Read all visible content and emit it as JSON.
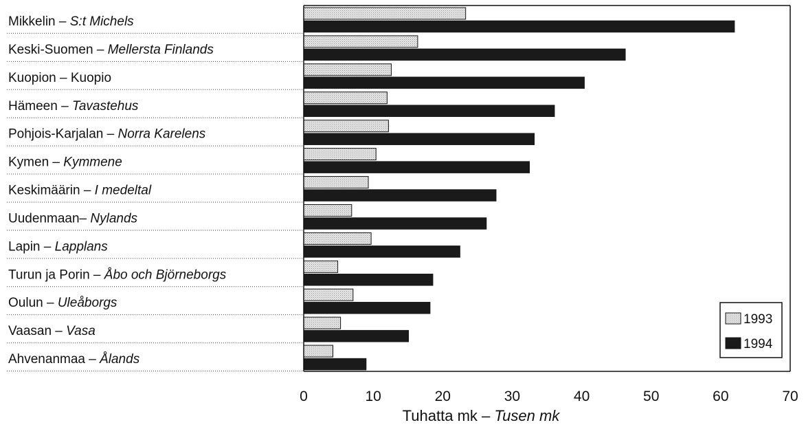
{
  "chart_data": {
    "type": "bar",
    "orientation": "horizontal",
    "categories": [
      {
        "plain": "Mikkelin – ",
        "italic": "S:t Michels"
      },
      {
        "plain": "Keski-Suomen – ",
        "italic": "Mellersta Finlands"
      },
      {
        "plain": "Kuopion – Kuopio",
        "italic": ""
      },
      {
        "plain": "Hämeen – ",
        "italic": "Tavastehus"
      },
      {
        "plain": "Pohjois-Karjalan – ",
        "italic": "Norra Karelens"
      },
      {
        "plain": "Kymen – ",
        "italic": "Kymmene"
      },
      {
        "plain": "Keskimäärin – ",
        "italic": "I medeltal"
      },
      {
        "plain": "Uudenmaan– ",
        "italic": "Nylands"
      },
      {
        "plain": "Lapin – ",
        "italic": "Lapplans"
      },
      {
        "plain": "Turun ja Porin – ",
        "italic": "Åbo och Björneborgs"
      },
      {
        "plain": "Oulun – ",
        "italic": "Uleåborgs"
      },
      {
        "plain": "Vaasan – ",
        "italic": "Vasa"
      },
      {
        "plain": "Ahvenanmaa – ",
        "italic": "Ålands"
      }
    ],
    "series": [
      {
        "name": "1993",
        "color": "#cfcfcf",
        "pattern": "dotted-light",
        "values": [
          23.3,
          16.4,
          12.6,
          12.0,
          12.2,
          10.4,
          9.3,
          6.9,
          9.7,
          4.9,
          7.1,
          5.3,
          4.2
        ]
      },
      {
        "name": "1994",
        "color": "#1a1a1a",
        "values": [
          62.0,
          46.3,
          40.4,
          36.1,
          33.2,
          32.5,
          27.7,
          26.3,
          22.5,
          18.6,
          18.2,
          15.1,
          9.0
        ]
      }
    ],
    "xlim": [
      0,
      70
    ],
    "xticks": [
      0,
      10,
      20,
      30,
      40,
      50,
      60,
      70
    ],
    "xlabel": {
      "plain": "Tuhatta mk – ",
      "italic": "Tusen mk"
    },
    "legend_position": "bottom-right",
    "grid": false
  }
}
